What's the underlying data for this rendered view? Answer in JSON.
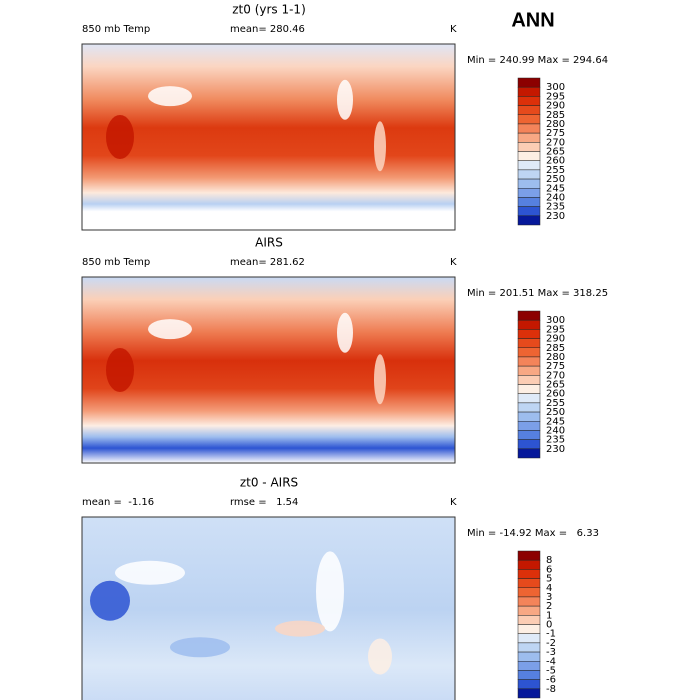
{
  "title": "ANN",
  "panels": [
    {
      "title": "zt0 (yrs 1-1)",
      "variable": "850 mb Temp",
      "stat": "mean= 280.46",
      "units": "K",
      "range": "Min = 240.99 Max = 294.64",
      "colorbar": {
        "labels": [
          "300",
          "295",
          "290",
          "285",
          "280",
          "275",
          "270",
          "265",
          "260",
          "255",
          "250",
          "245",
          "240",
          "235",
          "230"
        ],
        "colors": [
          "#8c0000",
          "#c41800",
          "#dc300a",
          "#e64a1c",
          "#ee6432",
          "#f4845a",
          "#f8a884",
          "#fccdb4",
          "#fdefe4",
          "#dfeaf8",
          "#bed5f3",
          "#9dbdee",
          "#7b9fe8",
          "#5680df",
          "#2d54d2",
          "#06189a"
        ]
      }
    },
    {
      "title": "AIRS",
      "variable": "850 mb Temp",
      "stat": "mean= 281.62",
      "units": "K",
      "range": "Min = 201.51 Max = 318.25",
      "colorbar": {
        "labels": [
          "300",
          "295",
          "290",
          "285",
          "280",
          "275",
          "270",
          "265",
          "260",
          "255",
          "250",
          "245",
          "240",
          "235",
          "230"
        ],
        "colors": [
          "#8c0000",
          "#c41800",
          "#dc300a",
          "#e64a1c",
          "#ee6432",
          "#f4845a",
          "#f8a884",
          "#fccdb4",
          "#fdefe4",
          "#dfeaf8",
          "#bed5f3",
          "#9dbdee",
          "#7b9fe8",
          "#5680df",
          "#2d54d2",
          "#06189a"
        ]
      }
    },
    {
      "title": "zt0 - AIRS",
      "variable": "mean =  -1.16",
      "stat": "rmse =   1.54",
      "units": "K",
      "range": "Min = -14.92 Max =   6.33",
      "colorbar": {
        "labels": [
          "8",
          "6",
          "5",
          "4",
          "3",
          "2",
          "1",
          "0",
          "-1",
          "-2",
          "-3",
          "-4",
          "-5",
          "-6",
          "-8"
        ],
        "colors": [
          "#8c0000",
          "#c41800",
          "#dc300a",
          "#e64a1c",
          "#ee6432",
          "#f4845a",
          "#f8a884",
          "#fccdb4",
          "#fdefe4",
          "#dfeaf8",
          "#bed5f3",
          "#9dbdee",
          "#7b9fe8",
          "#5680df",
          "#2d54d2",
          "#06189a"
        ]
      }
    }
  ]
}
